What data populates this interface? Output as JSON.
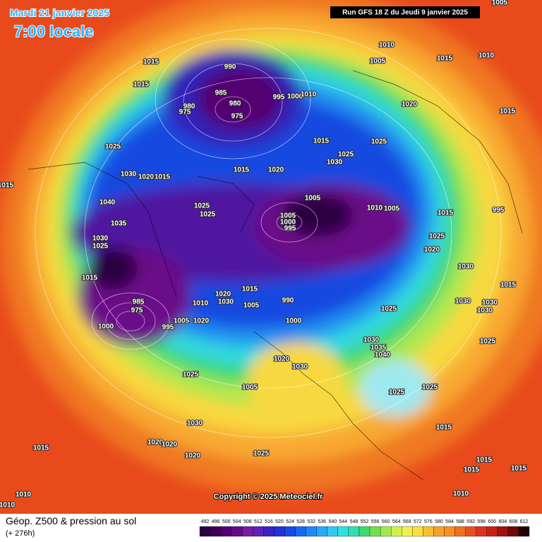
{
  "header": {
    "date": "Mardi 21 janvier 2025",
    "time": "7:00 locale",
    "run": "Run GFS 18 Z du Jeudi 9 janvier 2025"
  },
  "footer": {
    "title": "Géop. Z500 & pression au sol",
    "lead": "(+ 276h)",
    "copyright": "Copyright © 2025 Meteociel.fr"
  },
  "legend": {
    "levels": [
      492,
      496,
      500,
      504,
      508,
      512,
      516,
      520,
      524,
      528,
      532,
      536,
      540,
      544,
      548,
      552,
      556,
      560,
      564,
      568,
      572,
      576,
      580,
      584,
      588,
      592,
      596,
      600,
      604,
      608,
      612
    ],
    "colors": [
      "#2a0040",
      "#3c0058",
      "#520070",
      "#680a88",
      "#7a1aa0",
      "#6020b8",
      "#3a20c8",
      "#2030d8",
      "#1848e8",
      "#1868f0",
      "#2088f8",
      "#28a8f8",
      "#30c8f0",
      "#30e0e0",
      "#30e0b0",
      "#40d870",
      "#70e050",
      "#a0e850",
      "#d0f050",
      "#f0f050",
      "#f8e040",
      "#f8c030",
      "#f8a028",
      "#f89020",
      "#f07020",
      "#e85020",
      "#e03020",
      "#c82018",
      "#a01010",
      "#700808",
      "#200000"
    ]
  },
  "isobar_labels": [
    "1005",
    "1010",
    "1010",
    "1015",
    "1005",
    "990",
    "985",
    "980",
    "980",
    "975",
    "975",
    "995",
    "1000",
    "1010",
    "1015",
    "1015",
    "1020",
    "1015",
    "1025",
    "1015",
    "1025",
    "1025",
    "1030",
    "1015",
    "1020",
    "1030",
    "1020",
    "1015",
    "1015",
    "1040",
    "1025",
    "1025",
    "1005",
    "1005",
    "1000",
    "995",
    "1010",
    "1005",
    "1015",
    "995",
    "1035",
    "1030",
    "1025",
    "1025",
    "1020",
    "1030",
    "1015",
    "1015",
    "1020",
    "1030",
    "1010",
    "1015",
    "1005",
    "990",
    "1030",
    "1030",
    "1030",
    "1025",
    "985",
    "975",
    "1005",
    "1020",
    "1000",
    "1000",
    "995",
    "1030",
    "1035",
    "1040",
    "1025",
    "1020",
    "1030",
    "1025",
    "1005",
    "1025",
    "1025",
    "1030",
    "1015",
    "1020",
    "1020",
    "1020",
    "1025",
    "1015",
    "1015",
    "1015",
    "1015",
    "1010",
    "1010",
    "1010"
  ]
}
